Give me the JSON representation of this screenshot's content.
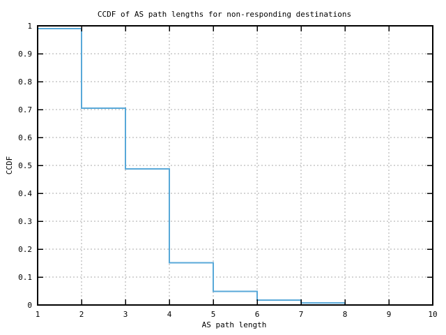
{
  "page": {
    "background": "#ffffff"
  },
  "chart_data": {
    "type": "line",
    "line_style": "steps-post",
    "title": "CCDF of AS path lengths for non-responding destinations",
    "xlabel": "AS path length",
    "ylabel": "CCDF",
    "xlim": [
      1,
      10
    ],
    "ylim": [
      0,
      1
    ],
    "xticks": [
      1,
      2,
      3,
      4,
      5,
      6,
      7,
      8,
      9,
      10
    ],
    "xtick_labels": [
      "1",
      "2",
      "3",
      "4",
      "5",
      "6",
      "7",
      "8",
      "9",
      "10"
    ],
    "yticks": [
      0,
      0.1,
      0.2,
      0.3,
      0.4,
      0.5,
      0.6,
      0.7,
      0.8,
      0.9,
      1
    ],
    "ytick_labels": [
      "0",
      "0.1",
      "0.2",
      "0.3",
      "0.4",
      "0.5",
      "0.6",
      "0.7",
      "0.8",
      "0.9",
      "1"
    ],
    "grid": true,
    "grid_style": "dashed",
    "legend": "none",
    "series": [
      {
        "name": "ccdf-steps",
        "x": [
          1,
          2,
          3,
          4,
          5,
          6,
          7
        ],
        "y": [
          0.99,
          0.705,
          0.487,
          0.151,
          0.049,
          0.017,
          0.007
        ],
        "x_end": 8,
        "end_drop_to": 0
      }
    ],
    "colors": {
      "line": "#58a8d8",
      "grid": "#a8a8a8",
      "axis": "#000000",
      "text": "#000000",
      "background": "#ffffff"
    }
  }
}
